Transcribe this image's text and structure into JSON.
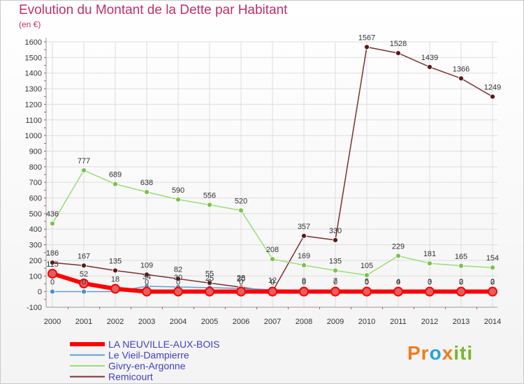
{
  "title": "Evolution du Montant de la Dette par Habitant",
  "subtitle": "(en €)",
  "logo": {
    "text_a": "Pr",
    "text_b": "o",
    "text_c": "x",
    "text_d": "iti"
  },
  "colors": {
    "background": "#ffffff",
    "grid": "#dddddd",
    "title": "#c0306a",
    "legend_text": "#4040c0"
  },
  "chart_data": {
    "type": "line",
    "title": "Evolution du Montant de la Dette par Habitant",
    "ylabel": "(en €)",
    "xlabel": "",
    "x": [
      "2000",
      "2001",
      "2002",
      "2003",
      "2004",
      "2005",
      "2006",
      "2007",
      "2008",
      "2009",
      "2010",
      "2011",
      "2012",
      "2013",
      "2014"
    ],
    "ylim": [
      -100,
      1600
    ],
    "yticks": [
      -100,
      0,
      100,
      200,
      300,
      400,
      500,
      600,
      700,
      800,
      900,
      1000,
      1100,
      1200,
      1300,
      1400,
      1500,
      1600
    ],
    "grid": true,
    "legend_position": "bottom-left",
    "series": [
      {
        "name": "LA NEUVILLE-AUX-BOIS",
        "color": "#ff0000",
        "point_color": "#e06060",
        "width": 6,
        "values": [
          115,
          52,
          18,
          0,
          0,
          0,
          0,
          0,
          0,
          0,
          0,
          0,
          0,
          0,
          0
        ],
        "labels": [
          "115",
          "52",
          "18",
          "0",
          "0",
          "0",
          "0",
          "0",
          "0",
          "0",
          "0",
          "0",
          "0",
          "0",
          "0"
        ]
      },
      {
        "name": "Le Vieil-Dampierre",
        "color": "#5f9fd0",
        "point_color": "#4a90d0",
        "width": 1.5,
        "values": [
          0,
          0,
          0,
          34,
          30,
          25,
          20,
          12,
          9,
          7,
          5,
          4,
          3,
          2,
          2
        ],
        "labels": [
          "0",
          "0",
          "",
          "34",
          "30",
          "25",
          "20",
          "12",
          "9",
          "7",
          "5",
          "4",
          "3",
          "2",
          "2"
        ]
      },
      {
        "name": "Givry-en-Argonne",
        "color": "#99dd77",
        "point_color": "#7cc24a",
        "width": 1.5,
        "values": [
          436,
          777,
          689,
          638,
          590,
          556,
          520,
          208,
          169,
          135,
          105,
          229,
          181,
          165,
          154
        ],
        "labels": [
          "436",
          "777",
          "689",
          "638",
          "590",
          "556",
          "520",
          "208",
          "169",
          "135",
          "105",
          "229",
          "181",
          "165",
          "154"
        ]
      },
      {
        "name": "Remicourt",
        "color": "#7a3030",
        "point_color": "#5a1a1a",
        "width": 1.5,
        "values": [
          186,
          167,
          135,
          109,
          82,
          55,
          28,
          0,
          357,
          330,
          1567,
          1528,
          1439,
          1366,
          1249
        ],
        "labels": [
          "186",
          "167",
          "135",
          "109",
          "82",
          "55",
          "28",
          "0",
          "357",
          "330",
          "1567",
          "1528",
          "1439",
          "1366",
          "1249"
        ]
      }
    ]
  }
}
